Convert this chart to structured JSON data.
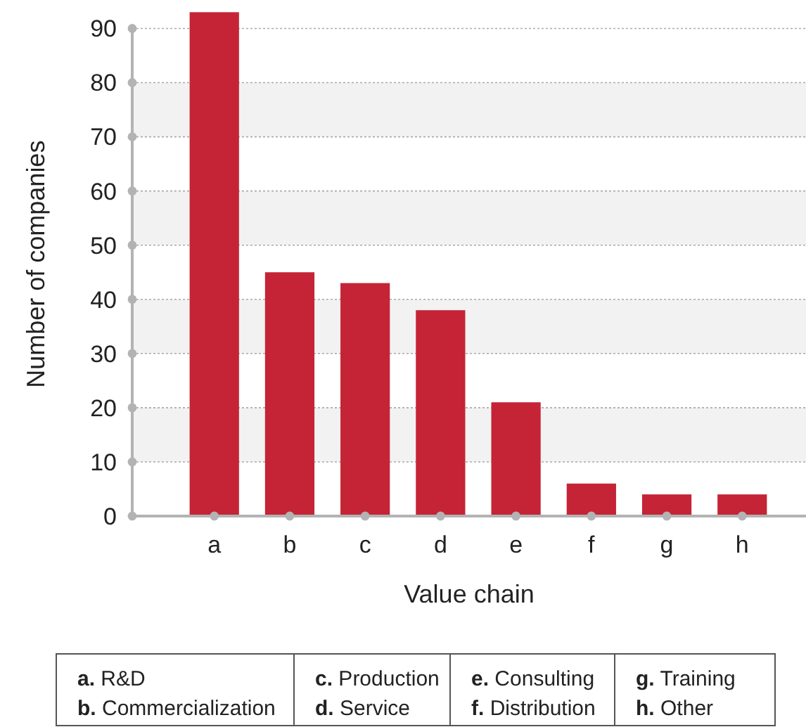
{
  "chart_data": {
    "type": "bar",
    "xlabel": "Value chain",
    "ylabel": "Number of companies",
    "categories": [
      "a",
      "b",
      "c",
      "d",
      "e",
      "f",
      "g",
      "h"
    ],
    "values": [
      93,
      45,
      43,
      38,
      21,
      6,
      4,
      4
    ],
    "color": "#c52436",
    "ylim": [
      0,
      93
    ],
    "yticks": [
      0,
      10,
      20,
      30,
      40,
      50,
      60,
      70,
      80,
      90
    ],
    "grid": "y",
    "bands": [
      {
        "axis": "y",
        "from": 10,
        "to": 20,
        "color": "#f2f2f2"
      },
      {
        "axis": "y",
        "from": 30,
        "to": 40,
        "color": "#f2f2f2"
      },
      {
        "axis": "y",
        "from": 50,
        "to": 60,
        "color": "#f2f2f2"
      },
      {
        "axis": "y",
        "from": 70,
        "to": 80,
        "color": "#f2f2f2"
      }
    ],
    "annotations": [
      "a. R&D",
      "b. Commercialization",
      "c. Production",
      "d. Service",
      "e. Consulting",
      "f. Distribution",
      "g. Training",
      "h. Other"
    ]
  }
}
